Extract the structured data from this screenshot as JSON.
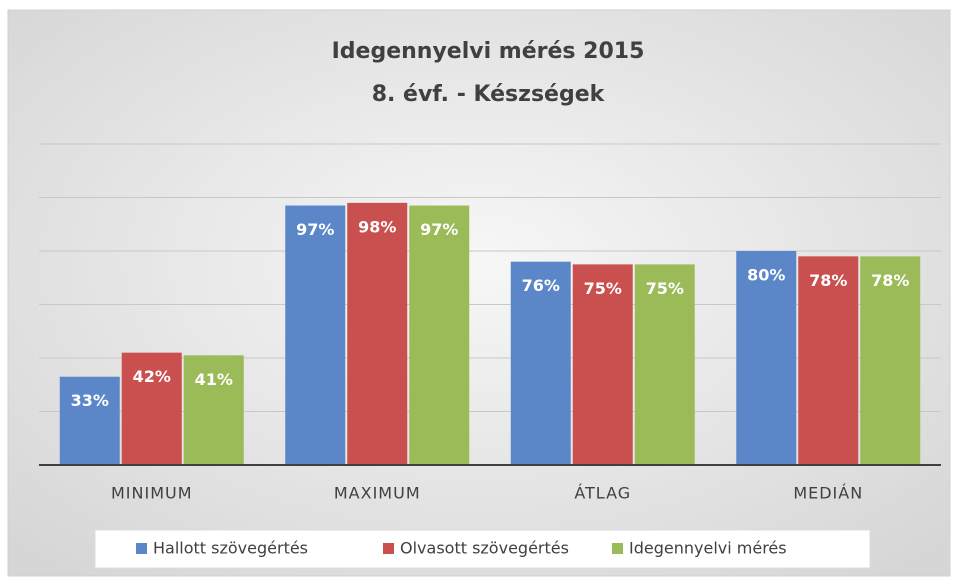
{
  "chart_data": {
    "type": "bar",
    "title": "Idegennyelvi mérés 2015",
    "subtitle": "8. évf. - Készségek",
    "categories": [
      "MINIMUM",
      "MAXIMUM",
      "ÁTLAG",
      "MEDIÁN"
    ],
    "series": [
      {
        "name": "Hallott szövegértés",
        "color": "#5b87c9",
        "values": [
          33,
          97,
          76,
          80
        ],
        "value_labels": [
          "33%",
          "97%",
          "76%",
          "80%"
        ]
      },
      {
        "name": "Olvasott szövegértés",
        "color": "#c9504f",
        "values": [
          42,
          98,
          75,
          78
        ],
        "value_labels": [
          "42%",
          "98%",
          "75%",
          "78%"
        ]
      },
      {
        "name": "Idegennyelvi mérés",
        "color": "#9bbb59",
        "values": [
          41,
          97,
          75,
          78
        ],
        "value_labels": [
          "41%",
          "97%",
          "75%",
          "78%"
        ]
      }
    ],
    "ylim": [
      0,
      120
    ],
    "yticks": [
      0,
      20,
      40,
      60,
      80,
      100,
      120
    ],
    "grid": true,
    "legend": "bottom"
  }
}
